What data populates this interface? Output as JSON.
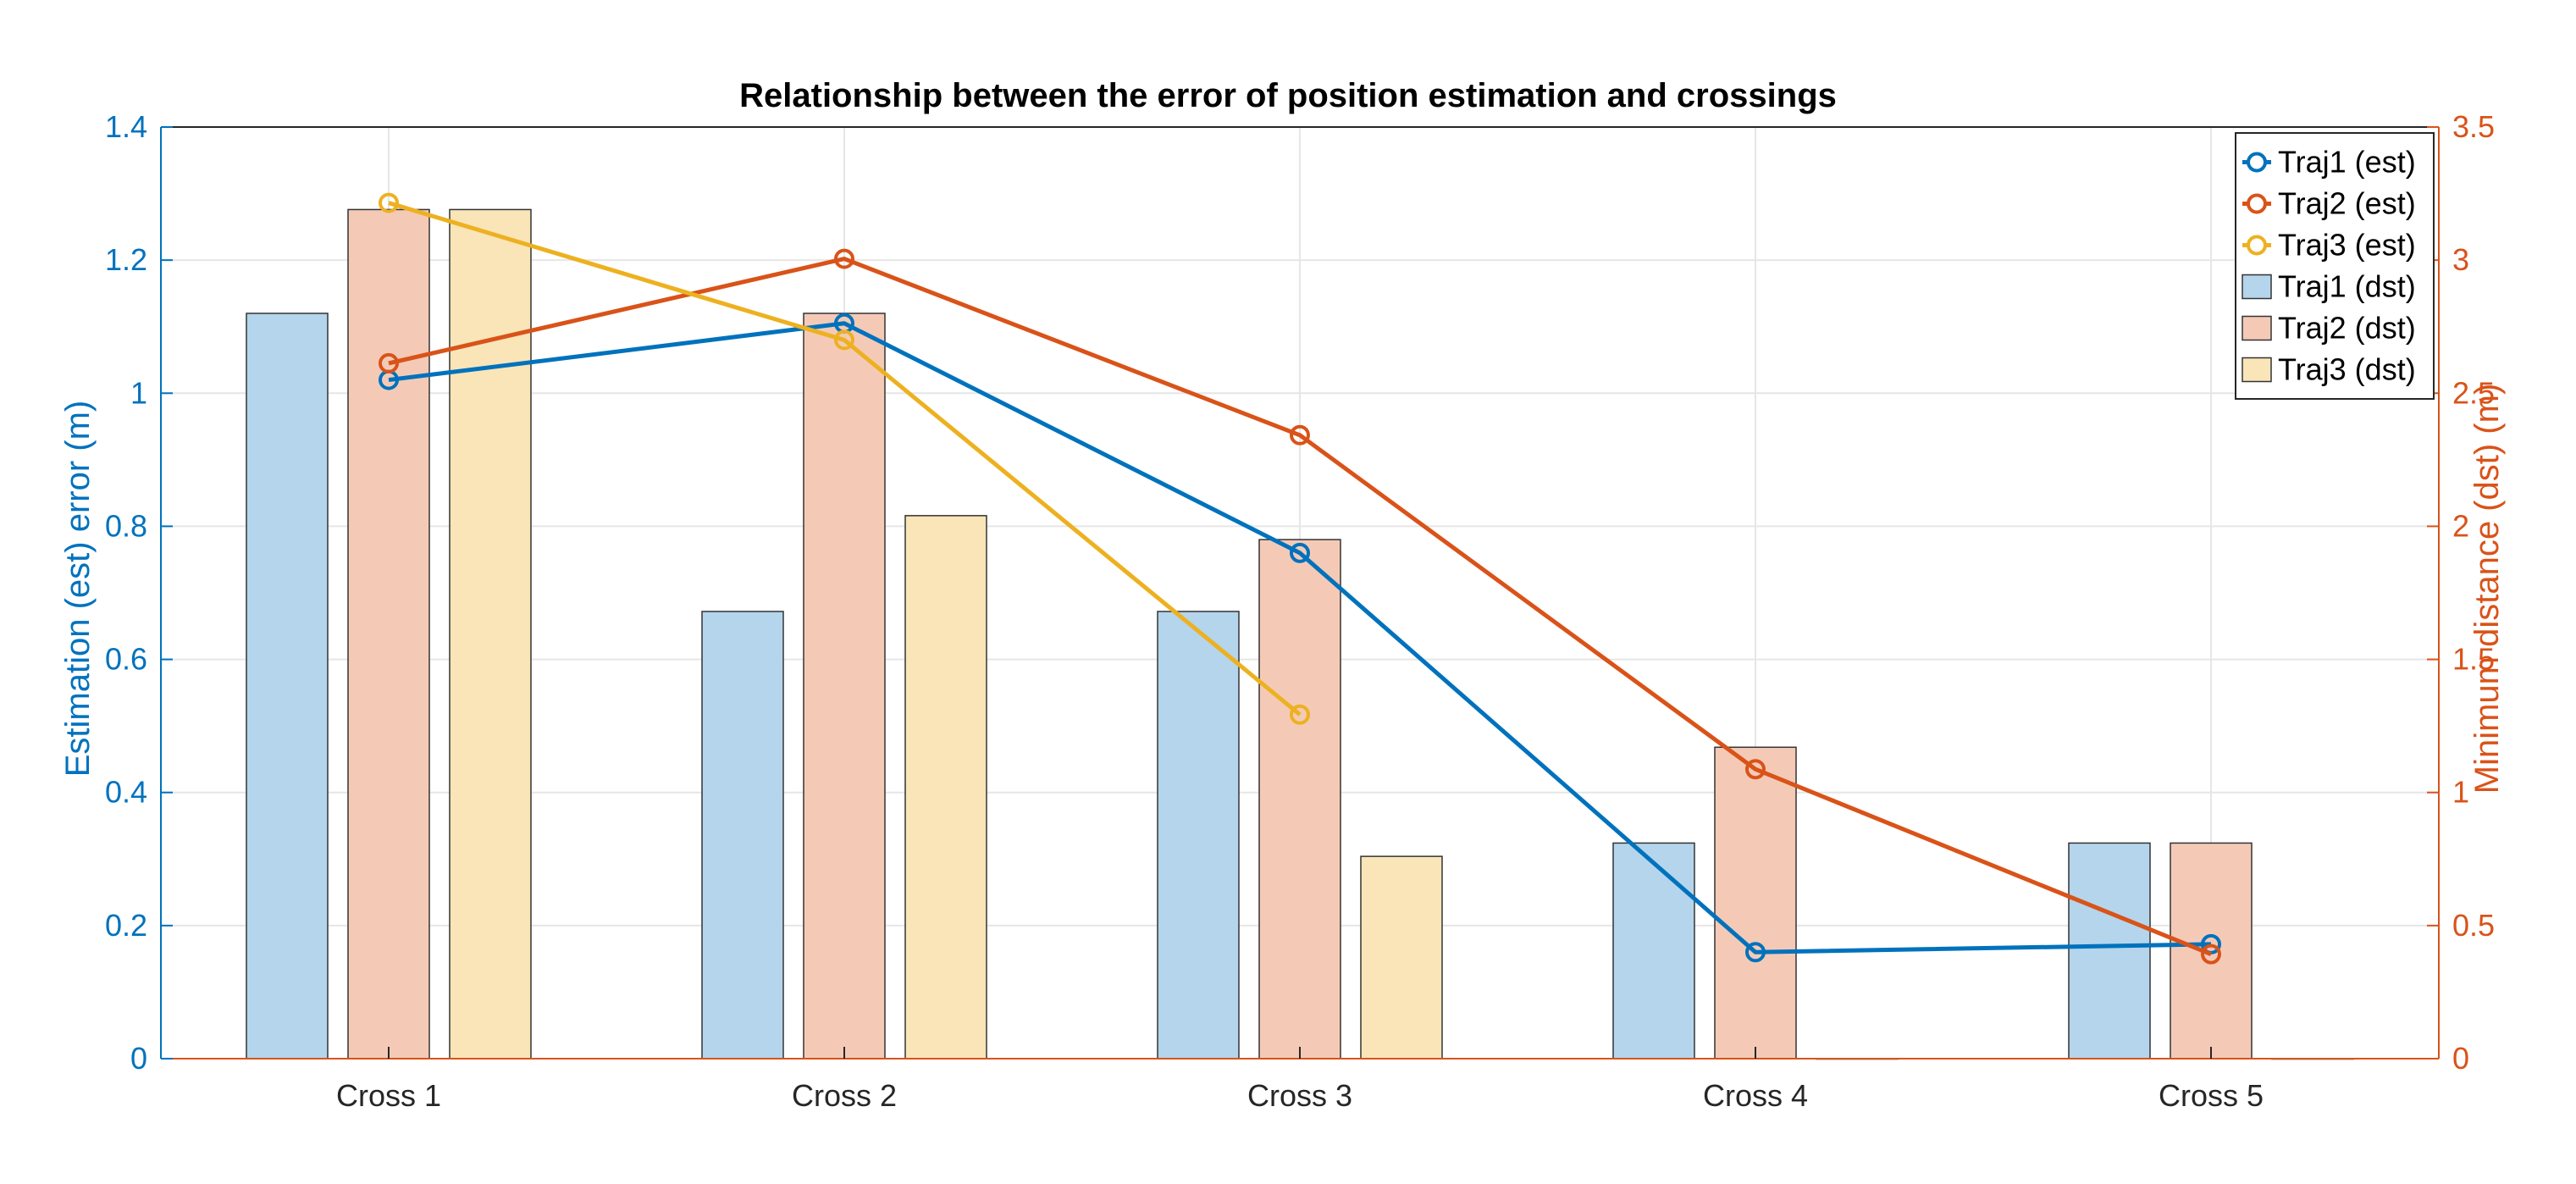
{
  "chart_data": {
    "type": "bar+line",
    "title": "Relationship between the error of position estimation and crossings",
    "categories": [
      "Cross 1",
      "Cross 2",
      "Cross 3",
      "Cross 4",
      "Cross 5"
    ],
    "y_left": {
      "label": "Estimation (est) error (m)",
      "lim": [
        0,
        1.4
      ],
      "ticks": [
        0,
        0.2,
        0.4,
        0.6,
        0.8,
        1,
        1.2,
        1.4
      ],
      "tick_labels": [
        "0",
        "0.2",
        "0.4",
        "0.6",
        "0.8",
        "1",
        "1.2",
        "1.4"
      ],
      "color": "#0072BD"
    },
    "y_right": {
      "label": "Minimum distance (dst) (m)",
      "lim": [
        0,
        3.5
      ],
      "ticks": [
        0,
        0.5,
        1,
        1.5,
        2,
        2.5,
        3,
        3.5
      ],
      "tick_labels": [
        "0",
        "0.5",
        "1",
        "1.5",
        "2",
        "2.5",
        "3",
        "3.5"
      ],
      "color": "#D95319"
    },
    "grid": true,
    "legend_position": "top-right",
    "line_series": [
      {
        "name": "Traj1 (est)",
        "axis": "left",
        "color": "#0072BD",
        "values": [
          1.02,
          1.105,
          0.76,
          0.16,
          0.172
        ]
      },
      {
        "name": "Traj2 (est)",
        "axis": "left",
        "color": "#D95319",
        "values": [
          1.045,
          1.202,
          0.937,
          0.435,
          0.157
        ]
      },
      {
        "name": "Traj3 (est)",
        "axis": "left",
        "color": "#EDB120",
        "values": [
          1.286,
          1.08,
          0.517,
          null,
          null
        ]
      }
    ],
    "bar_series": [
      {
        "name": "Traj1 (dst)",
        "axis": "right",
        "color": "#B4D5EC",
        "values": [
          2.8,
          1.68,
          1.68,
          0.81,
          0.81
        ]
      },
      {
        "name": "Traj2 (dst)",
        "axis": "right",
        "color": "#F4CAB7",
        "values": [
          3.19,
          2.8,
          1.95,
          1.17,
          0.81
        ]
      },
      {
        "name": "Traj3 (dst)",
        "axis": "right",
        "color": "#F9E5B8",
        "values": [
          3.19,
          2.04,
          0.76,
          0,
          0
        ]
      }
    ]
  }
}
